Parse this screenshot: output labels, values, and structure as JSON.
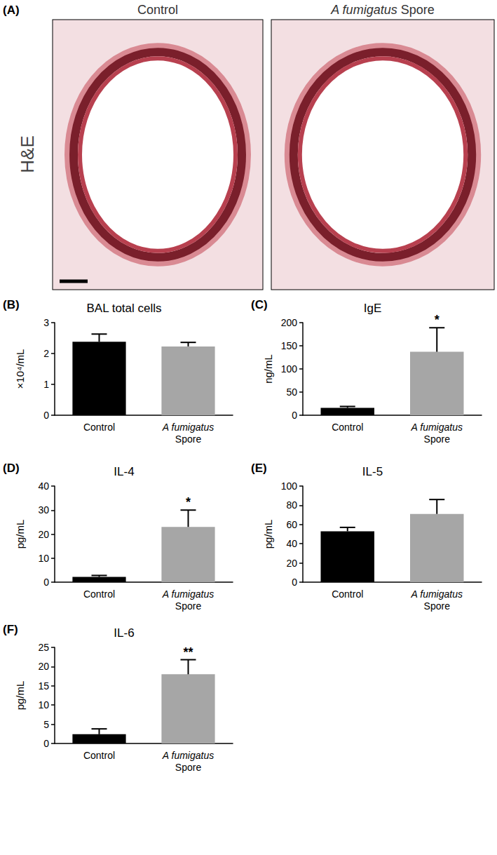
{
  "histology": {
    "panel_label": "(A)",
    "stain_label": "H&E",
    "images": [
      {
        "title": "Control"
      },
      {
        "title": "A fumigatus Spore"
      }
    ]
  },
  "chart_data": [
    {
      "type": "bar",
      "label": "(B)",
      "title": "BAL total cells",
      "y_label": "×10⁴/mL",
      "categories": [
        "Control",
        "A fumigatus\nSpore"
      ],
      "values": [
        2.38,
        2.23
      ],
      "errors": [
        0.25,
        0.13
      ],
      "significance": [
        null,
        null
      ],
      "colors": [
        "#000000",
        "#a6a6a6"
      ],
      "ylim": [
        0,
        3
      ],
      "yticks": [
        0,
        1,
        2,
        3
      ],
      "grid": false
    },
    {
      "type": "bar",
      "label": "(C)",
      "title": "IgE",
      "y_label": "ng/mL",
      "categories": [
        "Control",
        "A fumigatus\nSpore"
      ],
      "values": [
        16,
        137
      ],
      "errors": [
        3,
        52
      ],
      "significance": [
        null,
        "*"
      ],
      "colors": [
        "#000000",
        "#a6a6a6"
      ],
      "ylim": [
        0,
        200
      ],
      "yticks": [
        0,
        50,
        100,
        150,
        200
      ],
      "grid": false
    },
    {
      "type": "bar",
      "label": "(D)",
      "title": "IL-4",
      "y_label": "pg/mL",
      "categories": [
        "Control",
        "A fumigatus\nSpore"
      ],
      "values": [
        2.2,
        23
      ],
      "errors": [
        0.6,
        7
      ],
      "significance": [
        null,
        "*"
      ],
      "colors": [
        "#000000",
        "#a6a6a6"
      ],
      "ylim": [
        0,
        40
      ],
      "yticks": [
        0,
        10,
        20,
        30,
        40
      ],
      "grid": false
    },
    {
      "type": "bar",
      "label": "(E)",
      "title": "IL-5",
      "y_label": "pg/mL",
      "categories": [
        "Control",
        "A fumigatus\nSpore"
      ],
      "values": [
        53,
        71
      ],
      "errors": [
        4,
        15
      ],
      "significance": [
        null,
        null
      ],
      "colors": [
        "#000000",
        "#a6a6a6"
      ],
      "ylim": [
        0,
        100
      ],
      "yticks": [
        0,
        20,
        40,
        60,
        80,
        100
      ],
      "grid": false
    },
    {
      "type": "bar",
      "label": "(F)",
      "title": "IL-6",
      "y_label": "pg/mL",
      "categories": [
        "Control",
        "A fumigatus\nSpore"
      ],
      "values": [
        2.4,
        18
      ],
      "errors": [
        1.4,
        3.8
      ],
      "significance": [
        null,
        "**"
      ],
      "colors": [
        "#000000",
        "#a6a6a6"
      ],
      "ylim": [
        0,
        25
      ],
      "yticks": [
        0,
        5,
        10,
        15,
        20,
        25
      ],
      "grid": false
    }
  ]
}
